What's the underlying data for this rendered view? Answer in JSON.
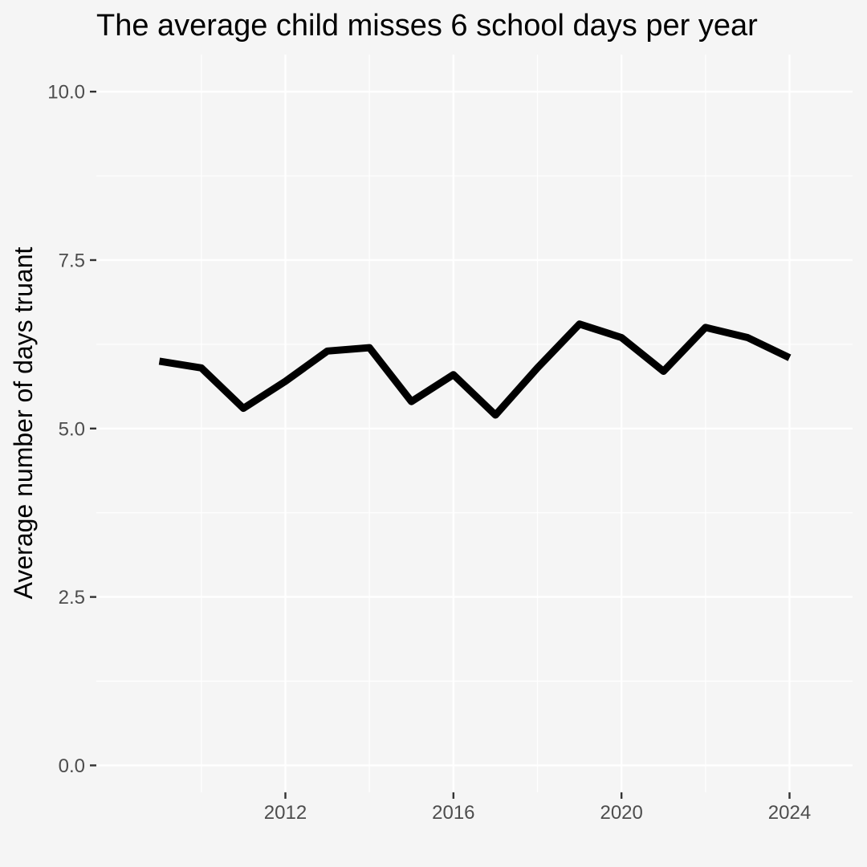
{
  "chart_data": {
    "type": "line",
    "title": "The average child misses 6 school days per year",
    "xlabel": "",
    "ylabel": "Average number of days truant",
    "x": [
      2009,
      2010,
      2011,
      2012,
      2013,
      2014,
      2015,
      2016,
      2017,
      2018,
      2019,
      2020,
      2021,
      2022,
      2023,
      2024
    ],
    "series": [
      {
        "values": [
          6.0,
          5.9,
          5.3,
          5.7,
          6.15,
          6.2,
          5.4,
          5.8,
          5.2,
          5.9,
          6.55,
          6.35,
          5.85,
          6.5,
          6.35,
          6.05
        ],
        "color": "#000000"
      }
    ],
    "xlim": [
      2007.5,
      2025.5
    ],
    "ylim": [
      -0.4,
      10.55
    ],
    "x_ticks": [
      2012,
      2016,
      2020,
      2024
    ],
    "x_tick_labels": [
      "2012",
      "2016",
      "2020",
      "2024"
    ],
    "x_minor_ticks": [
      2010,
      2014,
      2018,
      2022
    ],
    "y_ticks": [
      0,
      2.5,
      5,
      7.5,
      10
    ],
    "y_tick_labels": [
      "0.0",
      "2.5",
      "5.0",
      "7.5",
      "10.0"
    ],
    "y_minor_ticks": [
      1.25,
      3.75,
      6.25,
      8.75
    ],
    "grid": true,
    "legend": "none",
    "background_color": "#f5f5f5",
    "grid_color": "#ffffff"
  }
}
